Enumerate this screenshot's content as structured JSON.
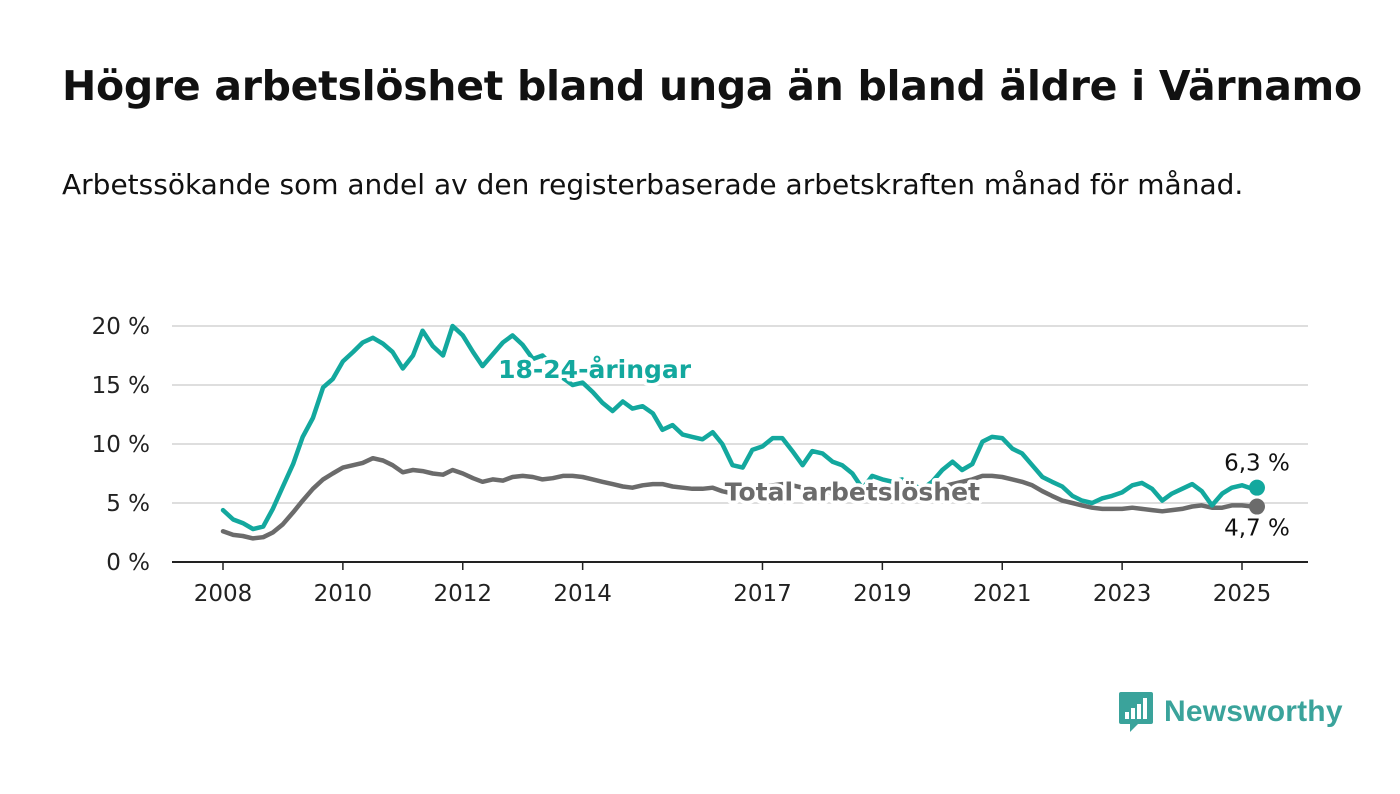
{
  "title": "Högre arbetslöshet bland unga än bland äldre i Värnamo",
  "subtitle": "Arbetssökande som andel av den registerbaserade arbetskraften månad för månad.",
  "logo_text": "Newsworthy",
  "colors": {
    "youth": "#13a89e",
    "total": "#6b6b6b",
    "grid": "#d4d4d4",
    "axis": "#222222"
  },
  "chart_data": {
    "type": "line",
    "title": "Högre arbetslöshet bland unga än bland äldre i Värnamo",
    "subtitle": "Arbetssökande som andel av den registerbaserade arbetskraften månad för månad.",
    "x_unit": "year",
    "xlim": [
      2008,
      2025.3
    ],
    "ylim": [
      0,
      20
    ],
    "y_ticks": [
      0,
      5,
      10,
      15,
      20
    ],
    "y_tick_labels": [
      "0 %",
      "5 %",
      "10 %",
      "15 %",
      "20 %"
    ],
    "x_ticks": [
      2008,
      2010,
      2012,
      2014,
      2017,
      2019,
      2021,
      2023,
      2025
    ],
    "x_tick_labels": [
      "2008",
      "2010",
      "2012",
      "2014",
      "2017",
      "2019",
      "2021",
      "2023",
      "2025"
    ],
    "grid": "horizontal",
    "series": [
      {
        "name": "18-24-åringar",
        "color": "#13a89e",
        "end_label": "6,3 %",
        "points": [
          [
            2008.0,
            4.4
          ],
          [
            2008.17,
            3.6
          ],
          [
            2008.33,
            3.3
          ],
          [
            2008.5,
            2.8
          ],
          [
            2008.67,
            3.0
          ],
          [
            2008.83,
            4.5
          ],
          [
            2009.0,
            6.4
          ],
          [
            2009.17,
            8.3
          ],
          [
            2009.33,
            10.6
          ],
          [
            2009.5,
            12.2
          ],
          [
            2009.67,
            14.8
          ],
          [
            2009.83,
            15.5
          ],
          [
            2010.0,
            17.0
          ],
          [
            2010.17,
            17.8
          ],
          [
            2010.33,
            18.6
          ],
          [
            2010.5,
            19.0
          ],
          [
            2010.67,
            18.5
          ],
          [
            2010.83,
            17.8
          ],
          [
            2011.0,
            16.4
          ],
          [
            2011.17,
            17.5
          ],
          [
            2011.33,
            19.6
          ],
          [
            2011.5,
            18.3
          ],
          [
            2011.67,
            17.5
          ],
          [
            2011.83,
            20.0
          ],
          [
            2012.0,
            19.2
          ],
          [
            2012.17,
            17.8
          ],
          [
            2012.33,
            16.6
          ],
          [
            2012.5,
            17.6
          ],
          [
            2012.67,
            18.6
          ],
          [
            2012.83,
            19.2
          ],
          [
            2013.0,
            18.4
          ],
          [
            2013.17,
            17.2
          ],
          [
            2013.33,
            17.5
          ],
          [
            2013.5,
            16.6
          ],
          [
            2013.67,
            15.6
          ],
          [
            2013.83,
            15.0
          ],
          [
            2014.0,
            15.2
          ],
          [
            2014.17,
            14.4
          ],
          [
            2014.33,
            13.5
          ],
          [
            2014.5,
            12.8
          ],
          [
            2014.67,
            13.6
          ],
          [
            2014.83,
            13.0
          ],
          [
            2015.0,
            13.2
          ],
          [
            2015.17,
            12.6
          ],
          [
            2015.33,
            11.2
          ],
          [
            2015.5,
            11.6
          ],
          [
            2015.67,
            10.8
          ],
          [
            2015.83,
            10.6
          ],
          [
            2016.0,
            10.4
          ],
          [
            2016.17,
            11.0
          ],
          [
            2016.33,
            10.0
          ],
          [
            2016.5,
            8.2
          ],
          [
            2016.67,
            8.0
          ],
          [
            2016.83,
            9.5
          ],
          [
            2017.0,
            9.8
          ],
          [
            2017.17,
            10.5
          ],
          [
            2017.33,
            10.5
          ],
          [
            2017.5,
            9.4
          ],
          [
            2017.67,
            8.2
          ],
          [
            2017.83,
            9.4
          ],
          [
            2018.0,
            9.2
          ],
          [
            2018.17,
            8.5
          ],
          [
            2018.33,
            8.2
          ],
          [
            2018.5,
            7.5
          ],
          [
            2018.67,
            6.2
          ],
          [
            2018.83,
            7.3
          ],
          [
            2019.0,
            7.0
          ],
          [
            2019.17,
            6.8
          ],
          [
            2019.33,
            7.0
          ],
          [
            2019.5,
            6.5
          ],
          [
            2019.67,
            6.2
          ],
          [
            2019.83,
            6.8
          ],
          [
            2020.0,
            7.8
          ],
          [
            2020.17,
            8.5
          ],
          [
            2020.33,
            7.8
          ],
          [
            2020.5,
            8.3
          ],
          [
            2020.67,
            10.2
          ],
          [
            2020.83,
            10.6
          ],
          [
            2021.0,
            10.5
          ],
          [
            2021.17,
            9.6
          ],
          [
            2021.33,
            9.2
          ],
          [
            2021.5,
            8.2
          ],
          [
            2021.67,
            7.2
          ],
          [
            2021.83,
            6.8
          ],
          [
            2022.0,
            6.4
          ],
          [
            2022.17,
            5.6
          ],
          [
            2022.33,
            5.2
          ],
          [
            2022.5,
            5.0
          ],
          [
            2022.67,
            5.4
          ],
          [
            2022.83,
            5.6
          ],
          [
            2023.0,
            5.9
          ],
          [
            2023.17,
            6.5
          ],
          [
            2023.33,
            6.7
          ],
          [
            2023.5,
            6.2
          ],
          [
            2023.67,
            5.2
          ],
          [
            2023.83,
            5.8
          ],
          [
            2024.0,
            6.2
          ],
          [
            2024.17,
            6.6
          ],
          [
            2024.33,
            6.0
          ],
          [
            2024.5,
            4.8
          ],
          [
            2024.67,
            5.8
          ],
          [
            2024.83,
            6.3
          ],
          [
            2025.0,
            6.5
          ],
          [
            2025.17,
            6.2
          ],
          [
            2025.25,
            6.3
          ]
        ]
      },
      {
        "name": "Total arbetslöshet",
        "color": "#6b6b6b",
        "end_label": "4,7 %",
        "points": [
          [
            2008.0,
            2.6
          ],
          [
            2008.17,
            2.3
          ],
          [
            2008.33,
            2.2
          ],
          [
            2008.5,
            2.0
          ],
          [
            2008.67,
            2.1
          ],
          [
            2008.83,
            2.5
          ],
          [
            2009.0,
            3.2
          ],
          [
            2009.17,
            4.2
          ],
          [
            2009.33,
            5.2
          ],
          [
            2009.5,
            6.2
          ],
          [
            2009.67,
            7.0
          ],
          [
            2009.83,
            7.5
          ],
          [
            2010.0,
            8.0
          ],
          [
            2010.17,
            8.2
          ],
          [
            2010.33,
            8.4
          ],
          [
            2010.5,
            8.8
          ],
          [
            2010.67,
            8.6
          ],
          [
            2010.83,
            8.2
          ],
          [
            2011.0,
            7.6
          ],
          [
            2011.17,
            7.8
          ],
          [
            2011.33,
            7.7
          ],
          [
            2011.5,
            7.5
          ],
          [
            2011.67,
            7.4
          ],
          [
            2011.83,
            7.8
          ],
          [
            2012.0,
            7.5
          ],
          [
            2012.17,
            7.1
          ],
          [
            2012.33,
            6.8
          ],
          [
            2012.5,
            7.0
          ],
          [
            2012.67,
            6.9
          ],
          [
            2012.83,
            7.2
          ],
          [
            2013.0,
            7.3
          ],
          [
            2013.17,
            7.2
          ],
          [
            2013.33,
            7.0
          ],
          [
            2013.5,
            7.1
          ],
          [
            2013.67,
            7.3
          ],
          [
            2013.83,
            7.3
          ],
          [
            2014.0,
            7.2
          ],
          [
            2014.17,
            7.0
          ],
          [
            2014.33,
            6.8
          ],
          [
            2014.5,
            6.6
          ],
          [
            2014.67,
            6.4
          ],
          [
            2014.83,
            6.3
          ],
          [
            2015.0,
            6.5
          ],
          [
            2015.17,
            6.6
          ],
          [
            2015.33,
            6.6
          ],
          [
            2015.5,
            6.4
          ],
          [
            2015.67,
            6.3
          ],
          [
            2015.83,
            6.2
          ],
          [
            2016.0,
            6.2
          ],
          [
            2016.17,
            6.3
          ],
          [
            2016.33,
            6.0
          ],
          [
            2016.5,
            5.8
          ],
          [
            2016.67,
            5.9
          ],
          [
            2016.83,
            6.1
          ],
          [
            2017.0,
            6.3
          ],
          [
            2017.17,
            6.5
          ],
          [
            2017.33,
            6.6
          ],
          [
            2017.5,
            6.5
          ],
          [
            2017.67,
            6.3
          ],
          [
            2017.83,
            6.2
          ],
          [
            2018.0,
            6.0
          ],
          [
            2018.17,
            5.9
          ],
          [
            2018.33,
            5.8
          ],
          [
            2018.5,
            5.7
          ],
          [
            2018.67,
            5.6
          ],
          [
            2018.83,
            5.8
          ],
          [
            2019.0,
            5.9
          ],
          [
            2019.17,
            6.0
          ],
          [
            2019.33,
            6.1
          ],
          [
            2019.5,
            6.0
          ],
          [
            2019.67,
            5.9
          ],
          [
            2019.83,
            6.2
          ],
          [
            2020.0,
            6.4
          ],
          [
            2020.17,
            6.6
          ],
          [
            2020.33,
            6.8
          ],
          [
            2020.5,
            7.0
          ],
          [
            2020.67,
            7.3
          ],
          [
            2020.83,
            7.3
          ],
          [
            2021.0,
            7.2
          ],
          [
            2021.17,
            7.0
          ],
          [
            2021.33,
            6.8
          ],
          [
            2021.5,
            6.5
          ],
          [
            2021.67,
            6.0
          ],
          [
            2021.83,
            5.6
          ],
          [
            2022.0,
            5.2
          ],
          [
            2022.17,
            5.0
          ],
          [
            2022.33,
            4.8
          ],
          [
            2022.5,
            4.6
          ],
          [
            2022.67,
            4.5
          ],
          [
            2022.83,
            4.5
          ],
          [
            2023.0,
            4.5
          ],
          [
            2023.17,
            4.6
          ],
          [
            2023.33,
            4.5
          ],
          [
            2023.5,
            4.4
          ],
          [
            2023.67,
            4.3
          ],
          [
            2023.83,
            4.4
          ],
          [
            2024.0,
            4.5
          ],
          [
            2024.17,
            4.7
          ],
          [
            2024.33,
            4.8
          ],
          [
            2024.5,
            4.6
          ],
          [
            2024.67,
            4.6
          ],
          [
            2024.83,
            4.8
          ],
          [
            2025.0,
            4.8
          ],
          [
            2025.17,
            4.7
          ],
          [
            2025.25,
            4.7
          ]
        ]
      }
    ],
    "series_labels": [
      {
        "text": "18-24-åringar",
        "series": 0,
        "x": 2014.2,
        "y": 15.6
      },
      {
        "text": "Total arbetslöshet",
        "series": 1,
        "x": 2018.5,
        "y": 5.2
      }
    ]
  }
}
